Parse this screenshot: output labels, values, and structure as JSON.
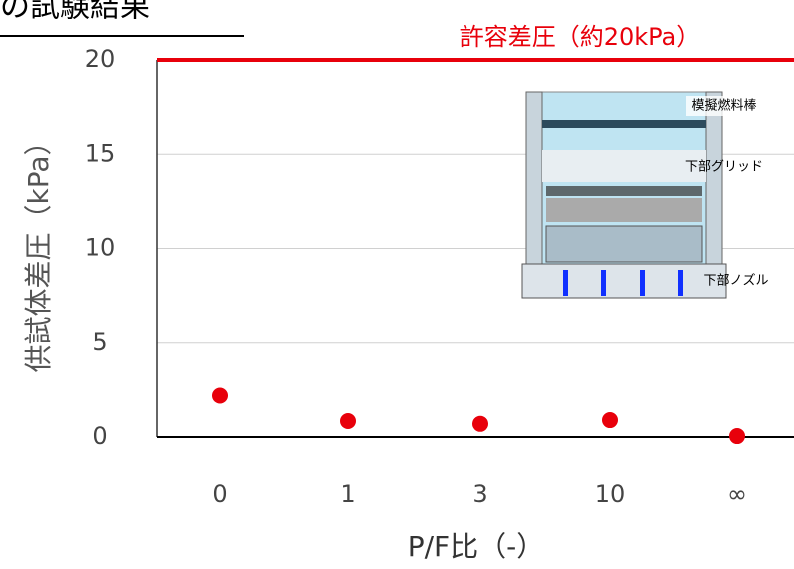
{
  "chart_data": {
    "type": "scatter",
    "title": "の試験結果",
    "x_label": "P/F比（-）",
    "y_label": "供試体差圧（kPa）",
    "categories": [
      "0",
      "1",
      "3",
      "10",
      "∞"
    ],
    "values": [
      2.2,
      0.85,
      0.7,
      0.9,
      0.05
    ],
    "color": "#e8000b",
    "ylim": [
      0,
      20
    ],
    "yticks": [
      0,
      5,
      10,
      15,
      20
    ],
    "grid": true,
    "reference_line": {
      "value": 20,
      "label": "許容差圧（約20kPa）",
      "color": "#e8000b"
    },
    "annotations": [
      "模擬燃料棒",
      "下部グリッド",
      "下部ノズル"
    ]
  }
}
